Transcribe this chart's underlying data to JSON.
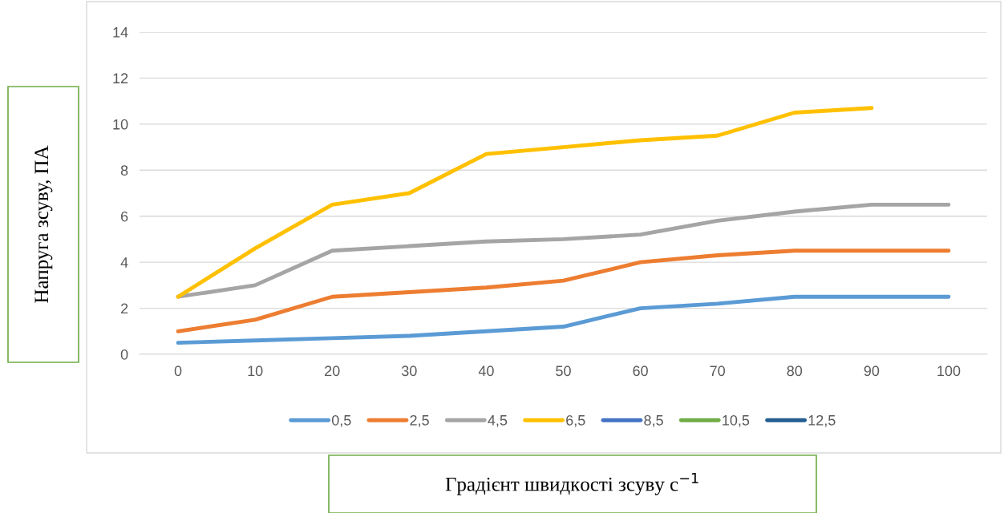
{
  "chart_data": {
    "type": "line",
    "xlabel": "Градієнт швидкості зсуву с$^{−1}$",
    "ylabel": "Напруга зсуву, ПА",
    "categories": [
      "0",
      "10",
      "20",
      "30",
      "40",
      "50",
      "60",
      "70",
      "80",
      "90",
      "100"
    ],
    "series": [
      {
        "name": "0,5",
        "color": "#5b9bd5",
        "values": [
          0.5,
          0.6,
          0.7,
          0.8,
          1.0,
          1.2,
          2.0,
          2.2,
          2.5,
          2.5,
          2.5
        ]
      },
      {
        "name": "2,5",
        "color": "#ed7d31",
        "values": [
          1.0,
          1.5,
          2.5,
          2.7,
          2.9,
          3.2,
          4.0,
          4.3,
          4.5,
          4.5,
          4.5
        ]
      },
      {
        "name": "4,5",
        "color": "#a5a5a5",
        "values": [
          2.5,
          3.0,
          4.5,
          4.7,
          4.9,
          5.0,
          5.2,
          5.8,
          6.2,
          6.5,
          6.5
        ]
      },
      {
        "name": "6,5",
        "color": "#ffc000",
        "values": [
          2.5,
          4.6,
          6.5,
          7.0,
          8.7,
          9.0,
          9.3,
          9.5,
          10.5,
          10.7,
          null
        ]
      },
      {
        "name": "8,5",
        "color": "#4472c4",
        "values": [
          null,
          null,
          null,
          null,
          null,
          null,
          null,
          null,
          null,
          null,
          null
        ]
      },
      {
        "name": "10,5",
        "color": "#70ad47",
        "values": [
          null,
          null,
          null,
          null,
          null,
          null,
          null,
          null,
          null,
          null,
          null
        ]
      },
      {
        "name": "12,5",
        "color": "#255e91",
        "values": [
          null,
          null,
          null,
          null,
          null,
          null,
          null,
          null,
          null,
          null,
          null
        ]
      }
    ],
    "ylim": [
      0,
      14
    ],
    "yticks": [
      0,
      2,
      4,
      6,
      8,
      10,
      12,
      14
    ],
    "grid": "y",
    "legend": "bottom",
    "marker": "none",
    "line_style": "solid"
  }
}
